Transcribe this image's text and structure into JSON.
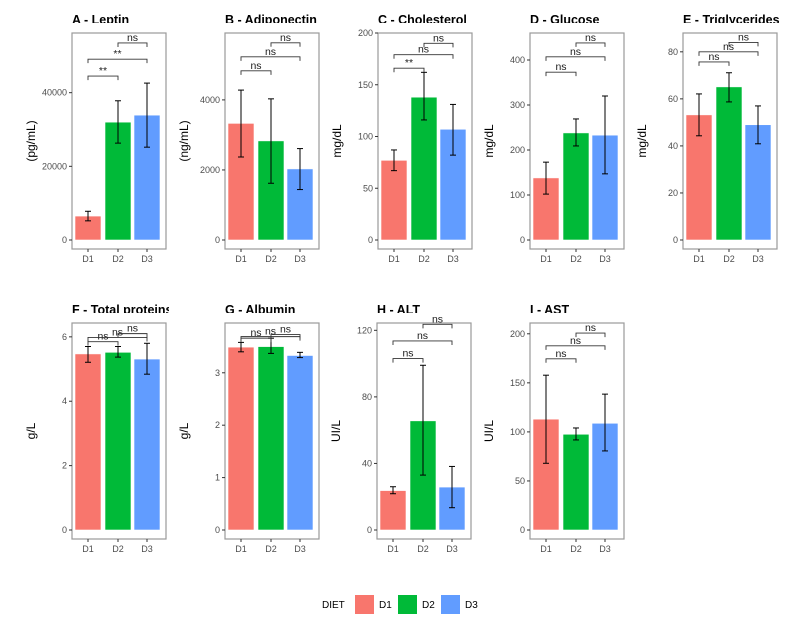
{
  "colors": {
    "D1": "#F8766D",
    "D2": "#00BA38",
    "D3": "#619CFF"
  },
  "legend": {
    "title": "DIET",
    "items": [
      "D1",
      "D2",
      "D3"
    ]
  },
  "chart_data": [
    {
      "type": "bar",
      "title": "A - Leptin",
      "ylabel": "(pg/mL)",
      "categories": [
        "D1",
        "D2",
        "D3"
      ],
      "values": [
        6500,
        32000,
        33900
      ],
      "error_low": [
        5200,
        26300,
        25200
      ],
      "error_high": [
        7800,
        37800,
        42600
      ],
      "ylim": [
        0,
        56200
      ],
      "yticks": [
        0,
        20000,
        40000
      ],
      "comparisons": [
        {
          "pair": [
            "D1",
            "D2"
          ],
          "label": "**",
          "y": 44500
        },
        {
          "pair": [
            "D1",
            "D3"
          ],
          "label": "**",
          "y": 49100
        },
        {
          "pair": [
            "D2",
            "D3"
          ],
          "label": "ns",
          "y": 53500
        }
      ]
    },
    {
      "type": "bar",
      "title": "B - Adiponectin",
      "ylabel": "(ng/mL)",
      "categories": [
        "D1",
        "D2",
        "D3"
      ],
      "values": [
        3330,
        2830,
        2030
      ],
      "error_low": [
        2370,
        1620,
        1440
      ],
      "error_high": [
        4280,
        4030,
        2610
      ],
      "ylim": [
        0,
        5910
      ],
      "yticks": [
        0,
        2000,
        4000
      ],
      "comparisons": [
        {
          "pair": [
            "D1",
            "D2"
          ],
          "label": "ns",
          "y": 4830
        },
        {
          "pair": [
            "D1",
            "D3"
          ],
          "label": "ns",
          "y": 5230
        },
        {
          "pair": [
            "D2",
            "D3"
          ],
          "label": "ns",
          "y": 5630
        }
      ]
    },
    {
      "type": "bar",
      "title": "C - Cholesterol",
      "ylabel": "mg/dL",
      "categories": [
        "D1",
        "D2",
        "D3"
      ],
      "values": [
        77,
        138,
        107
      ],
      "error_low": [
        67,
        116,
        82
      ],
      "error_high": [
        87,
        162,
        131
      ],
      "ylim": [
        0,
        200
      ],
      "yticks": [
        0,
        50,
        100,
        150,
        200
      ],
      "comparisons": [
        {
          "pair": [
            "D1",
            "D2"
          ],
          "label": "**",
          "y": 166
        },
        {
          "pair": [
            "D1",
            "D3"
          ],
          "label": "ns",
          "y": 179
        },
        {
          "pair": [
            "D2",
            "D3"
          ],
          "label": "ns",
          "y": 190
        }
      ]
    },
    {
      "type": "bar",
      "title": "D - Glucose",
      "ylabel": "mg/dL",
      "categories": [
        "D1",
        "D2",
        "D3"
      ],
      "values": [
        138,
        238,
        233
      ],
      "error_low": [
        102,
        209,
        147
      ],
      "error_high": [
        173,
        269,
        320
      ],
      "ylim": [
        0,
        460
      ],
      "yticks": [
        0,
        100,
        200,
        300,
        400
      ],
      "comparisons": [
        {
          "pair": [
            "D1",
            "D2"
          ],
          "label": "ns",
          "y": 373
        },
        {
          "pair": [
            "D1",
            "D3"
          ],
          "label": "ns",
          "y": 407
        },
        {
          "pair": [
            "D2",
            "D3"
          ],
          "label": "ns",
          "y": 438
        }
      ]
    },
    {
      "type": "bar",
      "title": "E - Triglycerides",
      "ylabel": "mg/dL",
      "categories": [
        "D1",
        "D2",
        "D3"
      ],
      "values": [
        53.2,
        65.1,
        49
      ],
      "error_low": [
        44.3,
        58.7,
        40.9
      ],
      "error_high": [
        62.1,
        71.1,
        57
      ],
      "ylim": [
        0,
        88
      ],
      "yticks": [
        0,
        20,
        40,
        60,
        80
      ],
      "comparisons": [
        {
          "pair": [
            "D1",
            "D2"
          ],
          "label": "ns",
          "y": 75.7
        },
        {
          "pair": [
            "D1",
            "D3"
          ],
          "label": "ns",
          "y": 80
        },
        {
          "pair": [
            "D2",
            "D3"
          ],
          "label": "ns",
          "y": 84
        }
      ]
    },
    {
      "type": "bar",
      "title": "F - Total proteins",
      "ylabel": "g/L",
      "categories": [
        "D1",
        "D2",
        "D3"
      ],
      "values": [
        5.47,
        5.52,
        5.31
      ],
      "error_low": [
        5.21,
        5.37,
        4.84
      ],
      "error_high": [
        5.7,
        5.7,
        5.8
      ],
      "ylim": [
        0,
        6.43
      ],
      "yticks": [
        0,
        2,
        4,
        6
      ],
      "comparisons": [
        {
          "pair": [
            "D1",
            "D2"
          ],
          "label": "ns",
          "y": 5.85
        },
        {
          "pair": [
            "D1",
            "D3"
          ],
          "label": "ns",
          "y": 5.98
        },
        {
          "pair": [
            "D2",
            "D3"
          ],
          "label": "ns",
          "y": 6.1
        }
      ]
    },
    {
      "type": "bar",
      "title": "G - Albumin",
      "ylabel": "g/L",
      "categories": [
        "D1",
        "D2",
        "D3"
      ],
      "values": [
        3.49,
        3.5,
        3.33
      ],
      "error_low": [
        3.4,
        3.37,
        3.29
      ],
      "error_high": [
        3.58,
        3.66,
        3.39
      ],
      "ylim": [
        0,
        3.95
      ],
      "yticks": [
        0,
        1,
        2,
        3
      ],
      "comparisons": [
        {
          "pair": [
            "D1",
            "D2"
          ],
          "label": "ns",
          "y": 3.66
        },
        {
          "pair": [
            "D1",
            "D3"
          ],
          "label": "ns",
          "y": 3.69
        },
        {
          "pair": [
            "D2",
            "D3"
          ],
          "label": "ns",
          "y": 3.73
        }
      ]
    },
    {
      "type": "bar",
      "title": "H - ALT",
      "ylabel": "UI/L",
      "categories": [
        "D1",
        "D2",
        "D3"
      ],
      "values": [
        23.7,
        65.6,
        25.8
      ],
      "error_low": [
        21.8,
        33,
        13.4
      ],
      "error_high": [
        26,
        99,
        38.2
      ],
      "ylim": [
        0,
        124.4
      ],
      "yticks": [
        0,
        40,
        80,
        120
      ],
      "comparisons": [
        {
          "pair": [
            "D1",
            "D2"
          ],
          "label": "ns",
          "y": 103
        },
        {
          "pair": [
            "D1",
            "D3"
          ],
          "label": "ns",
          "y": 113.6
        },
        {
          "pair": [
            "D2",
            "D3"
          ],
          "label": "ns",
          "y": 123.6
        }
      ]
    },
    {
      "type": "bar",
      "title": "I - AST",
      "ylabel": "UI/L",
      "categories": [
        "D1",
        "D2",
        "D3"
      ],
      "values": [
        113,
        97.6,
        108.8
      ],
      "error_low": [
        68,
        91.8,
        80.6
      ],
      "error_high": [
        157.8,
        104,
        138.5
      ],
      "ylim": [
        0,
        211
      ],
      "yticks": [
        0,
        50,
        100,
        150,
        200
      ],
      "comparisons": [
        {
          "pair": [
            "D1",
            "D2"
          ],
          "label": "ns",
          "y": 174.5
        },
        {
          "pair": [
            "D1",
            "D3"
          ],
          "label": "ns",
          "y": 187.7
        },
        {
          "pair": [
            "D2",
            "D3"
          ],
          "label": "ns",
          "y": 200.7
        }
      ]
    }
  ]
}
